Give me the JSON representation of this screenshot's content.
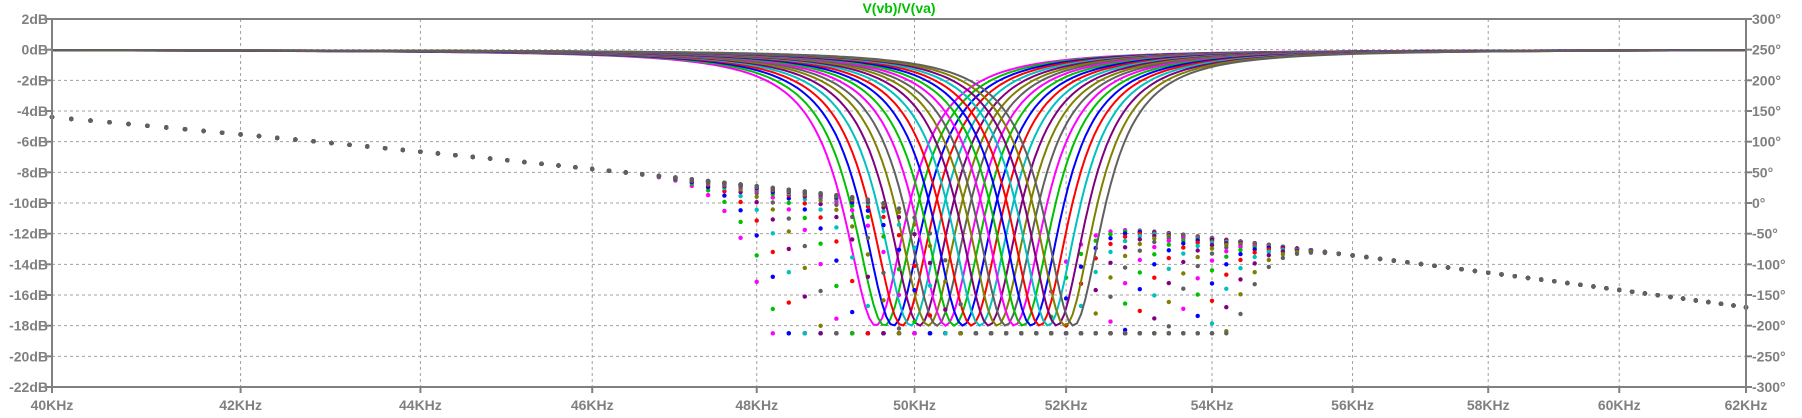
{
  "chart_data": {
    "type": "line",
    "title": "V(vb)/V(va)",
    "x_scale": "log",
    "x_unit": "Hz",
    "x_range": [
      40000,
      62000
    ],
    "x_ticks": [
      "40KHz",
      "42KHz",
      "44KHz",
      "46KHz",
      "48KHz",
      "50KHz",
      "52KHz",
      "54KHz",
      "56KHz",
      "58KHz",
      "60KHz",
      "62KHz"
    ],
    "y_left": {
      "unit": "dB",
      "range": [
        -22,
        2
      ],
      "ticks": [
        "2dB",
        "0dB",
        "-2dB",
        "-4dB",
        "-6dB",
        "-8dB",
        "-10dB",
        "-12dB",
        "-14dB",
        "-16dB",
        "-18dB",
        "-20dB",
        "-22dB"
      ]
    },
    "y_right": {
      "unit": "deg",
      "range": [
        -300,
        300
      ],
      "ticks": [
        "300°",
        "250°",
        "200°",
        "150°",
        "100°",
        "50°",
        "0°",
        "-50°",
        "-100°",
        "-150°",
        "-200°",
        "-250°",
        "-300°"
      ]
    },
    "grid": true,
    "sweep": {
      "magnitude_dB": {
        "passband": 0,
        "notch_depth": -18,
        "notch_frequency_first": 49500,
        "notch_frequency_last": 52100
      },
      "phase_deg": {
        "start": -4.4,
        "end": -16.8
      },
      "step_count": 24,
      "colors": [
        "#ff00ff",
        "#00c000",
        "#0000ff",
        "#ff0000",
        "#00c0c0",
        "#800080",
        "#808000",
        "#606060"
      ]
    }
  }
}
